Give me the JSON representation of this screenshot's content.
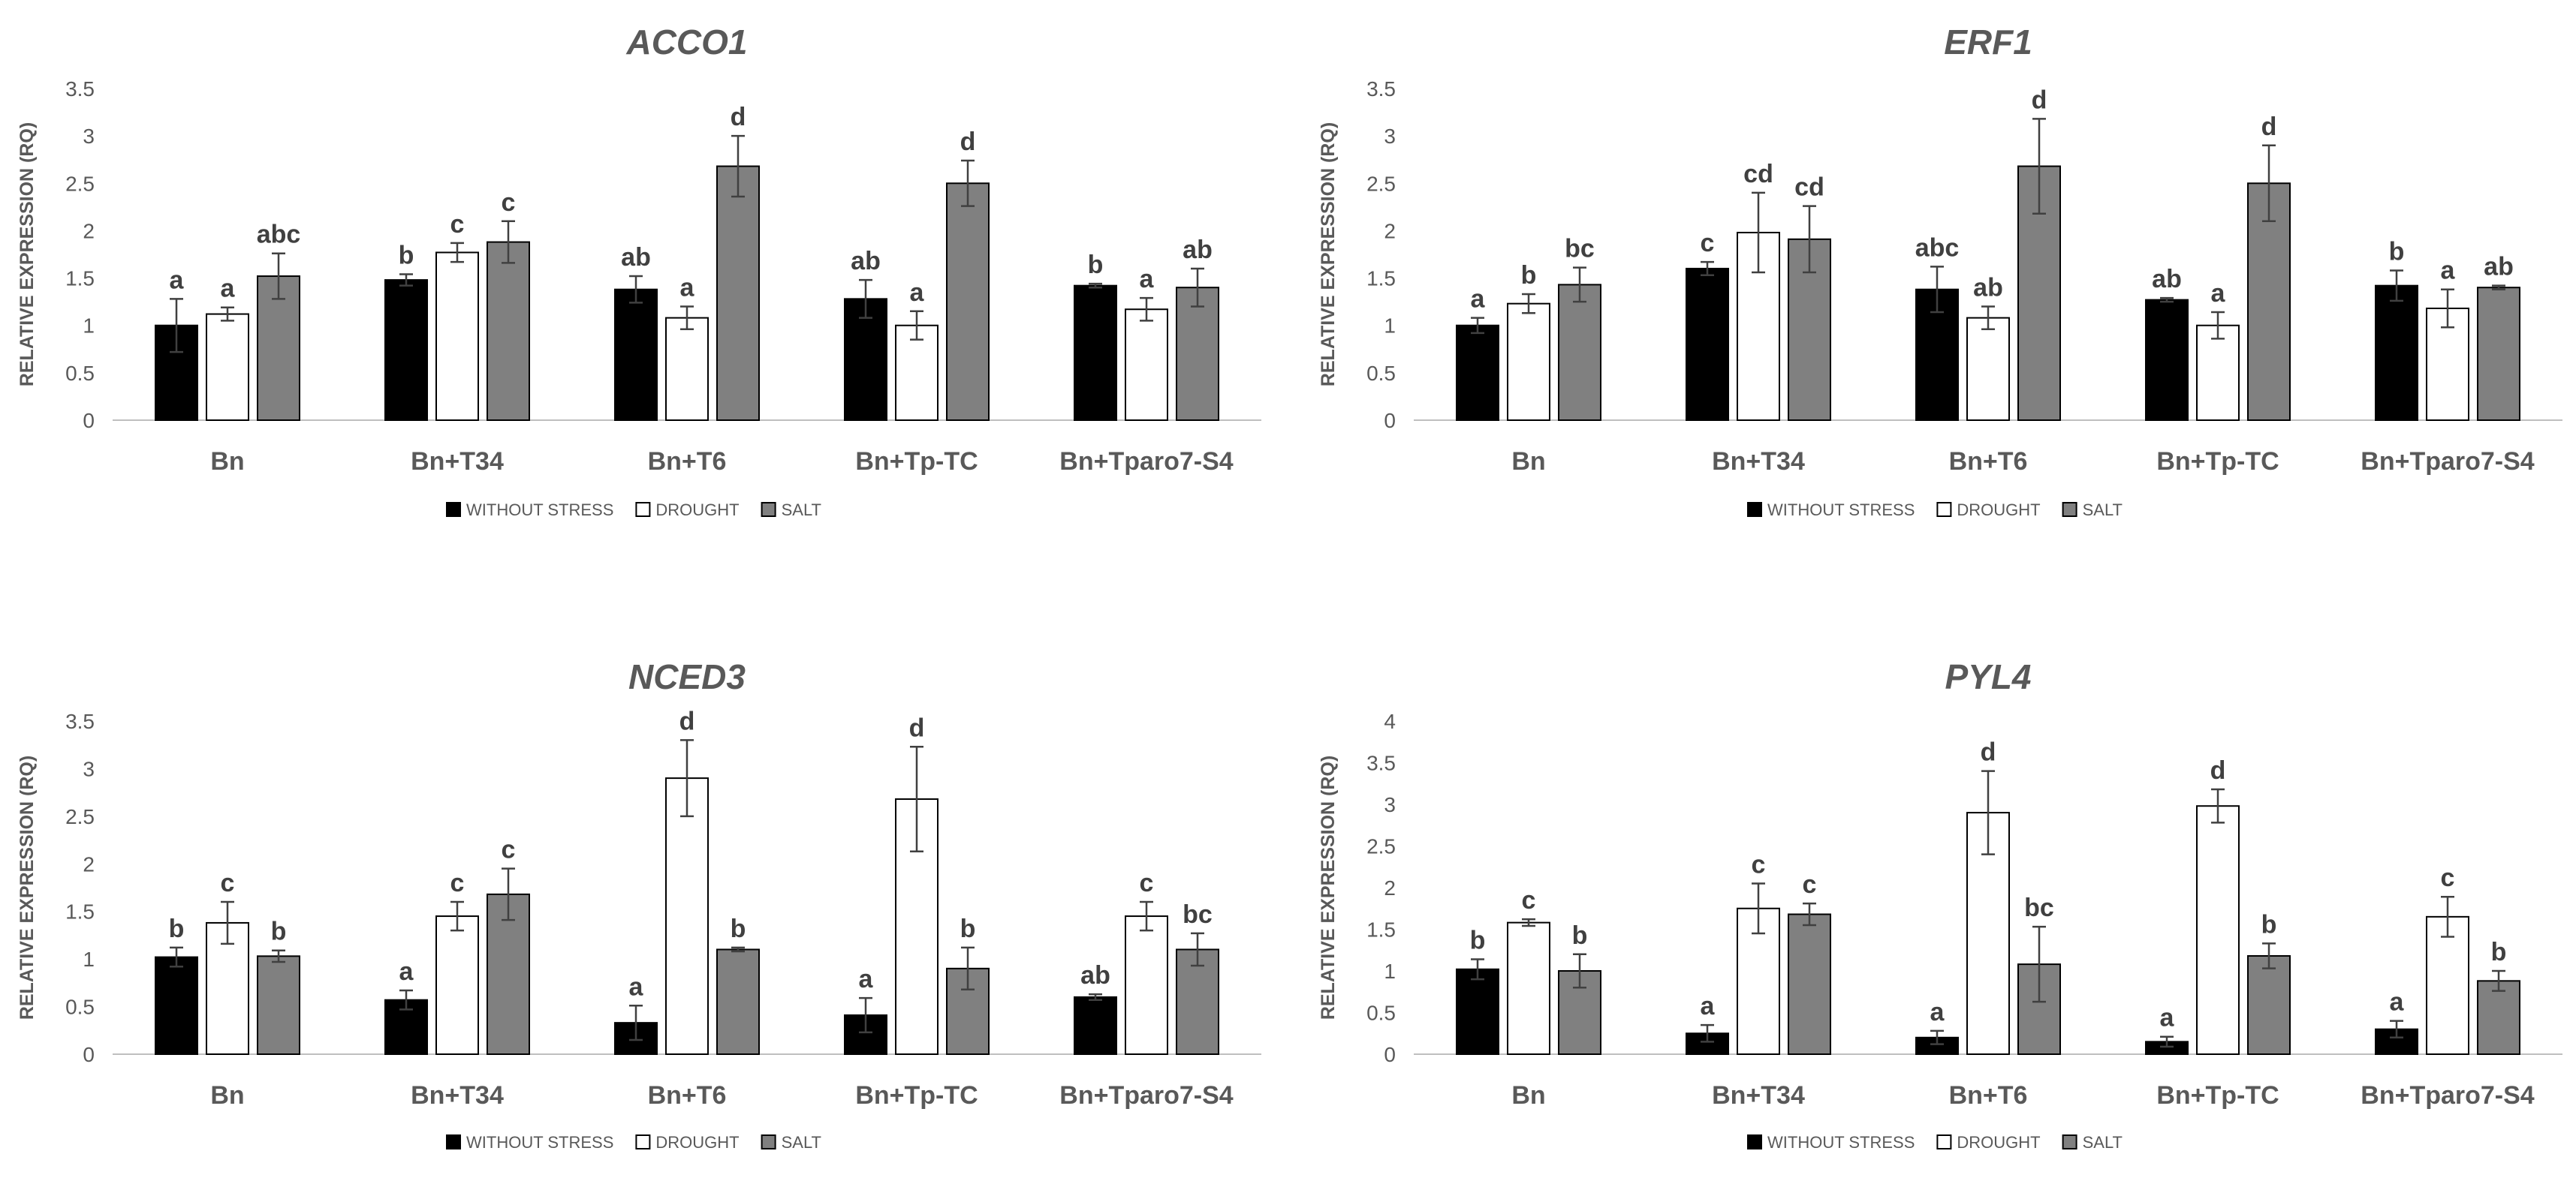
{
  "chart_data": [
    {
      "type": "bar",
      "title": "ACCO1",
      "ylabel": "RELATIVE EXPRESSION (RQ)",
      "ylim": [
        0,
        3.5
      ],
      "yticks": [
        "0",
        "0.5",
        "1",
        "1.5",
        "2",
        "2.5",
        "3",
        "3.5"
      ],
      "categories": [
        "Bn",
        "Bn+T34",
        "Bn+T6",
        "Bn+Tp-TC",
        "Bn+Tparo7-S4"
      ],
      "series": [
        {
          "name": "WITHOUT STRESS",
          "color": "#000000",
          "values": [
            1.0,
            1.48,
            1.38,
            1.28,
            1.42
          ],
          "errors": [
            0.28,
            0.06,
            0.14,
            0.2,
            0.02
          ],
          "letters": [
            "a",
            "b",
            "ab",
            "ab",
            "b"
          ]
        },
        {
          "name": "DROUGHT",
          "color": "#ffffff",
          "values": [
            1.12,
            1.77,
            1.08,
            1.0,
            1.17
          ],
          "errors": [
            0.07,
            0.1,
            0.12,
            0.15,
            0.12
          ],
          "letters": [
            "a",
            "c",
            "a",
            "a",
            "a"
          ]
        },
        {
          "name": "SALT",
          "color": "#808080",
          "values": [
            1.52,
            1.88,
            2.68,
            2.5,
            1.4
          ],
          "errors": [
            0.24,
            0.22,
            0.32,
            0.24,
            0.2
          ],
          "letters": [
            "abc",
            "c",
            "d",
            "d",
            "ab"
          ]
        }
      ]
    },
    {
      "type": "bar",
      "title": "ERF1",
      "ylabel": "RELATIVE EXPRESSION (RQ)",
      "ylim": [
        0,
        3.5
      ],
      "yticks": [
        "0",
        "0.5",
        "1",
        "1.5",
        "2",
        "2.5",
        "3",
        "3.5"
      ],
      "categories": [
        "Bn",
        "Bn+T34",
        "Bn+T6",
        "Bn+Tp-TC",
        "Bn+Tparo7-S4"
      ],
      "series": [
        {
          "name": "WITHOUT STRESS",
          "color": "#000000",
          "values": [
            1.0,
            1.6,
            1.38,
            1.27,
            1.42
          ],
          "errors": [
            0.08,
            0.07,
            0.24,
            0.02,
            0.16
          ],
          "letters": [
            "a",
            "c",
            "abc",
            "ab",
            "b"
          ]
        },
        {
          "name": "DROUGHT",
          "color": "#ffffff",
          "values": [
            1.23,
            1.98,
            1.08,
            1.0,
            1.18
          ],
          "errors": [
            0.1,
            0.42,
            0.12,
            0.14,
            0.2
          ],
          "letters": [
            "b",
            "cd",
            "ab",
            "a",
            "a"
          ]
        },
        {
          "name": "SALT",
          "color": "#808080",
          "values": [
            1.43,
            1.91,
            2.68,
            2.5,
            1.4
          ],
          "errors": [
            0.18,
            0.35,
            0.5,
            0.4,
            0.02
          ],
          "letters": [
            "bc",
            "cd",
            "d",
            "d",
            "ab"
          ]
        }
      ]
    },
    {
      "type": "bar",
      "title": "NCED3",
      "ylabel": "RELATIVE EXPRESSION (RQ)",
      "ylim": [
        0,
        3.5
      ],
      "yticks": [
        "0",
        "0.5",
        "1",
        "1.5",
        "2",
        "2.5",
        "3",
        "3.5"
      ],
      "categories": [
        "Bn",
        "Bn+T34",
        "Bn+T6",
        "Bn+Tp-TC",
        "Bn+Tparo7-S4"
      ],
      "series": [
        {
          "name": "WITHOUT STRESS",
          "color": "#000000",
          "values": [
            1.02,
            0.57,
            0.33,
            0.41,
            0.6
          ],
          "errors": [
            0.1,
            0.1,
            0.18,
            0.18,
            0.03
          ],
          "letters": [
            "b",
            "a",
            "a",
            "a",
            "ab"
          ]
        },
        {
          "name": "DROUGHT",
          "color": "#ffffff",
          "values": [
            1.38,
            1.45,
            2.9,
            2.68,
            1.45
          ],
          "errors": [
            0.22,
            0.15,
            0.4,
            0.55,
            0.15
          ],
          "letters": [
            "c",
            "c",
            "d",
            "d",
            "c"
          ]
        },
        {
          "name": "SALT",
          "color": "#808080",
          "values": [
            1.03,
            1.68,
            1.1,
            0.9,
            1.1
          ],
          "errors": [
            0.06,
            0.27,
            0.02,
            0.22,
            0.17
          ],
          "letters": [
            "b",
            "c",
            "b",
            "b",
            "bc"
          ]
        }
      ]
    },
    {
      "type": "bar",
      "title": "PYL4",
      "ylabel": "RELATIVE EXPRESSION (RQ)",
      "ylim": [
        0,
        4
      ],
      "yticks": [
        "0",
        "0.5",
        "1",
        "1.5",
        "2",
        "2.5",
        "3",
        "3.5",
        "4"
      ],
      "categories": [
        "Bn",
        "Bn+T34",
        "Bn+T6",
        "Bn+Tp-TC",
        "Bn+Tparo7-S4"
      ],
      "series": [
        {
          "name": "WITHOUT STRESS",
          "color": "#000000",
          "values": [
            1.02,
            0.25,
            0.2,
            0.15,
            0.3
          ],
          "errors": [
            0.12,
            0.1,
            0.08,
            0.06,
            0.1
          ],
          "letters": [
            "b",
            "a",
            "a",
            "a",
            "a"
          ]
        },
        {
          "name": "DROUGHT",
          "color": "#ffffff",
          "values": [
            1.58,
            1.75,
            2.9,
            2.98,
            1.65
          ],
          "errors": [
            0.04,
            0.3,
            0.5,
            0.2,
            0.24
          ],
          "letters": [
            "c",
            "c",
            "d",
            "d",
            "c"
          ]
        },
        {
          "name": "SALT",
          "color": "#808080",
          "values": [
            1.0,
            1.68,
            1.08,
            1.18,
            0.88
          ],
          "errors": [
            0.2,
            0.13,
            0.45,
            0.15,
            0.12
          ],
          "letters": [
            "b",
            "c",
            "bc",
            "b",
            "b"
          ]
        }
      ]
    }
  ]
}
